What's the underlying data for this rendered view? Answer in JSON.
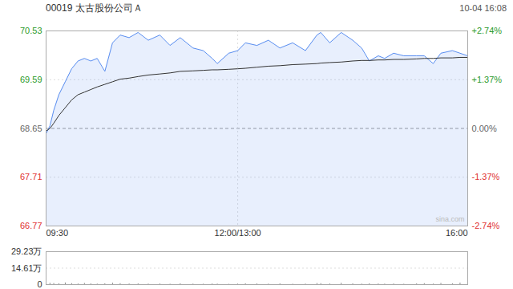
{
  "chart_data": [
    {
      "type": "line",
      "title": "00019 太古股份公司Ａ",
      "subtitle": "10-04 16:08",
      "x": [
        0,
        3,
        6,
        10,
        15,
        20,
        25,
        30,
        35,
        40,
        46,
        52,
        58,
        65,
        72,
        80,
        89,
        97,
        105,
        115,
        123,
        130,
        134,
        143,
        150,
        156,
        165,
        174,
        183,
        193,
        203,
        212,
        215,
        222,
        231,
        240,
        247,
        253,
        260,
        265,
        272,
        280,
        290,
        296,
        303,
        309,
        318,
        324,
        330
      ],
      "xlim": [
        0,
        330
      ],
      "xticks": [
        {
          "value": 0,
          "label": "09:30"
        },
        {
          "value": 150,
          "label": "12:00/13:00"
        },
        {
          "value": 330,
          "label": "16:00"
        }
      ],
      "ylim": [
        66.77,
        70.53
      ],
      "yticks": [
        70.53,
        69.59,
        68.65,
        67.71,
        66.77
      ],
      "y2lim": [
        -2.74,
        2.74
      ],
      "y2ticks": [
        {
          "value": 2.74,
          "label": "+2.74%"
        },
        {
          "value": 1.37,
          "label": "+1.37%"
        },
        {
          "value": 0,
          "label": "0.00%"
        },
        {
          "value": -1.37,
          "label": "-1.37%"
        },
        {
          "value": -2.74,
          "label": "-2.74%"
        }
      ],
      "grid": true,
      "series": [
        {
          "type": "area",
          "color": "#5b8ff0",
          "values": [
            68.55,
            68.7,
            69.0,
            69.3,
            69.55,
            69.8,
            69.95,
            70.0,
            69.95,
            70.0,
            69.75,
            70.3,
            70.45,
            70.4,
            70.5,
            70.35,
            70.45,
            70.25,
            70.4,
            70.2,
            70.15,
            70.0,
            69.9,
            70.1,
            70.15,
            70.3,
            70.25,
            70.35,
            70.2,
            70.3,
            70.15,
            70.45,
            70.5,
            70.3,
            70.5,
            70.35,
            70.2,
            69.95,
            70.05,
            70.0,
            70.1,
            70.05,
            70.05,
            70.05,
            69.9,
            70.1,
            70.15,
            70.1,
            70.05
          ]
        },
        {
          "type": "line",
          "color": "#333333",
          "values": [
            68.6,
            68.65,
            68.75,
            68.9,
            69.05,
            69.2,
            69.3,
            69.35,
            69.4,
            69.45,
            69.5,
            69.55,
            69.6,
            69.62,
            69.65,
            69.68,
            69.7,
            69.72,
            69.75,
            69.76,
            69.77,
            69.78,
            69.78,
            69.79,
            69.8,
            69.81,
            69.83,
            69.85,
            69.86,
            69.88,
            69.89,
            69.9,
            69.91,
            69.92,
            69.93,
            69.95,
            69.96,
            69.96,
            69.97,
            69.97,
            69.98,
            69.98,
            69.99,
            70.0,
            70.0,
            70.01,
            70.01,
            70.02,
            70.02
          ]
        }
      ],
      "annotations": [
        {
          "text": "sina.com"
        }
      ]
    },
    {
      "type": "bar",
      "x": [
        0,
        3,
        6,
        10,
        15,
        20,
        25,
        30,
        35,
        40,
        46,
        52,
        58,
        65,
        72,
        80,
        89,
        97,
        105,
        115,
        123,
        130,
        134,
        143,
        150,
        156,
        165,
        174,
        183,
        193,
        203,
        212,
        215,
        222,
        231,
        240,
        247,
        253,
        260,
        265,
        272,
        280,
        290,
        296,
        303,
        309,
        318,
        324,
        330
      ],
      "xlim": [
        0,
        330
      ],
      "ylim": [
        0,
        29.23
      ],
      "yticks": [
        {
          "value": 29.23,
          "label": "29.23万"
        },
        {
          "value": 14.61,
          "label": "14.61万"
        },
        0
      ],
      "color": "#888888",
      "values": [
        3.5,
        1.2,
        1.0,
        0.8,
        1.5,
        0.9,
        0.6,
        1.1,
        0.7,
        0.5,
        0.8,
        1.3,
        0.9,
        0.6,
        0.7,
        0.5,
        0.6,
        0.4,
        0.8,
        0.5,
        0.4,
        0.6,
        0.5,
        0.3,
        0.5,
        0.8,
        0.6,
        0.5,
        0.7,
        0.4,
        0.5,
        1.0,
        0.9,
        0.6,
        1.2,
        0.7,
        0.5,
        0.8,
        0.6,
        0.5,
        0.6,
        0.4,
        0.7,
        0.9,
        0.5,
        1.1,
        0.8,
        1.4,
        3.0
      ]
    }
  ]
}
